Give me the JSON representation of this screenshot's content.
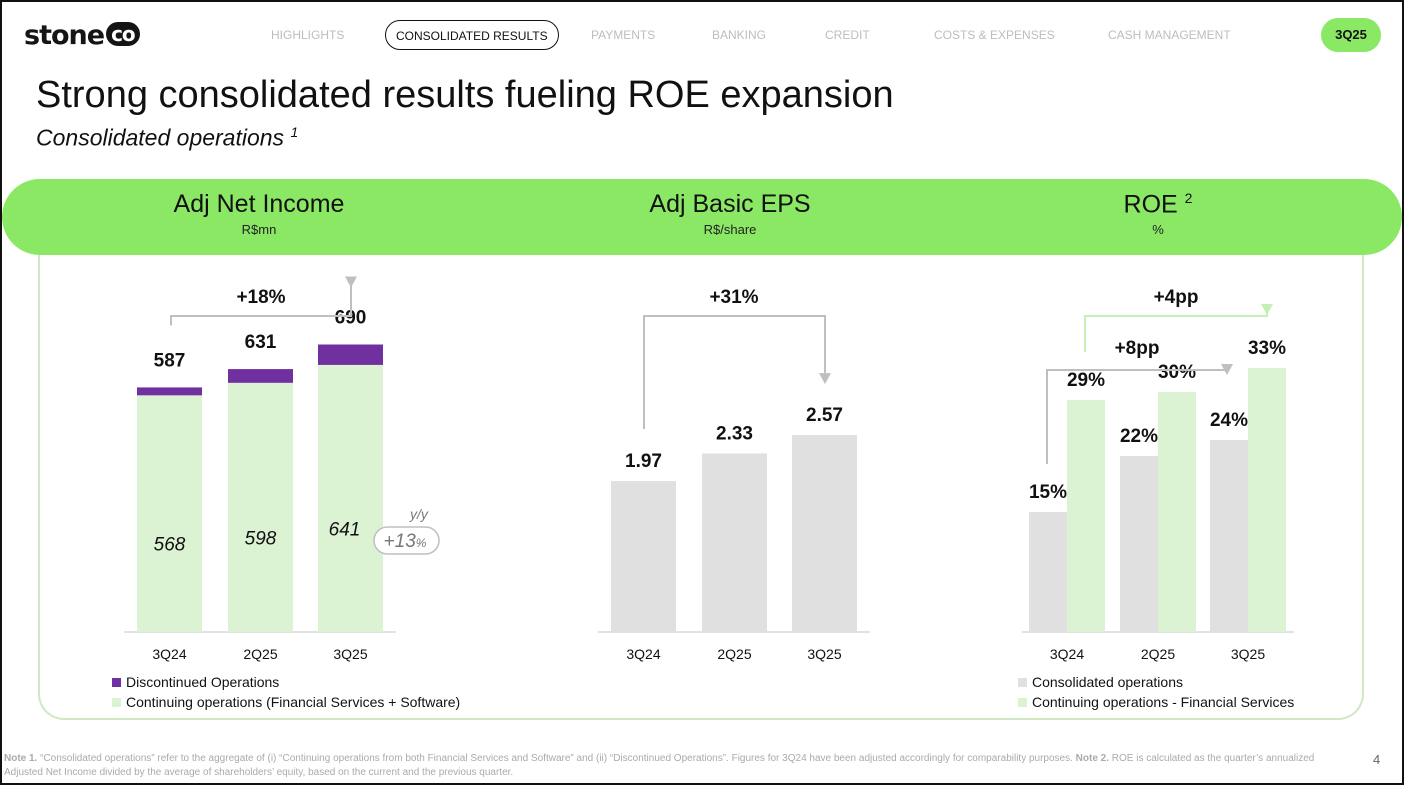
{
  "brand": {
    "logo_text": "stone",
    "logo_badge": "co"
  },
  "nav": {
    "items": [
      {
        "label": "HIGHLIGHTS",
        "active": false
      },
      {
        "label": "CONSOLIDATED RESULTS",
        "active": true
      },
      {
        "label": "PAYMENTS",
        "active": false
      },
      {
        "label": "BANKING",
        "active": false
      },
      {
        "label": "CREDIT",
        "active": false
      },
      {
        "label": "COSTS & EXPENSES",
        "active": false
      },
      {
        "label": "CASH MANAGEMENT",
        "active": false
      }
    ],
    "period": "3Q25"
  },
  "title": "Strong consolidated results fueling ROE expansion",
  "subtitle": "Consolidated operations",
  "subtitle_note": "1",
  "colors": {
    "banner": "#8be865",
    "discontinued": "#7030a0",
    "continuing": "#dcf3d3",
    "consolidated": "#e0e0e0",
    "connector_gray": "#bfbfbf",
    "connector_green": "#c6efb8"
  },
  "headers": [
    {
      "title": "Adj Net Income",
      "note": "",
      "unit": "R$mn"
    },
    {
      "title": "Adj Basic EPS",
      "note": "",
      "unit": "R$/share"
    },
    {
      "title": "ROE",
      "note": "2",
      "unit": "%"
    }
  ],
  "chart_data": [
    {
      "type": "bar",
      "stacked": true,
      "title": "Adj Net Income",
      "ylabel": "R$mn",
      "categories": [
        "3Q24",
        "2Q25",
        "3Q25"
      ],
      "series": [
        {
          "name": "Continuing operations (Financial Services + Software)",
          "values": [
            568,
            598,
            641
          ],
          "color": "#dcf3d3"
        },
        {
          "name": "Discontinued Operations",
          "values": [
            19,
            33,
            49
          ],
          "color": "#7030a0"
        }
      ],
      "totals": [
        "587",
        "631",
        "690"
      ],
      "segment_labels": [
        "568",
        "598",
        "641"
      ],
      "growth": {
        "label": "+18%",
        "from": "3Q24",
        "to": "3Q25"
      },
      "yoy": {
        "caption": "y/y",
        "value": "+13",
        "unit": "%"
      },
      "ylim": [
        0,
        780
      ],
      "legend": [
        "Discontinued Operations",
        "Continuing operations (Financial Services + Software)"
      ]
    },
    {
      "type": "bar",
      "title": "Adj Basic EPS",
      "ylabel": "R$/share",
      "categories": [
        "3Q24",
        "2Q25",
        "3Q25"
      ],
      "series": [
        {
          "values": [
            1.97,
            2.33,
            2.57
          ],
          "color": "#e0e0e0"
        }
      ],
      "labels": [
        "1.97",
        "2.33",
        "2.57"
      ],
      "growth": {
        "label": "+31%",
        "from": "3Q24",
        "to": "3Q25"
      },
      "ylim": [
        0,
        3.85
      ]
    },
    {
      "type": "bar",
      "title": "ROE",
      "ylabel": "%",
      "categories": [
        "3Q24",
        "2Q25",
        "3Q25"
      ],
      "series": [
        {
          "name": "Consolidated operations",
          "values": [
            15,
            22,
            24
          ],
          "labels": [
            "15%",
            "22%",
            "24%"
          ],
          "color": "#e0e0e0"
        },
        {
          "name": "Continuing operations - Financial Services",
          "values": [
            29,
            30,
            33
          ],
          "labels": [
            "29%",
            "30%",
            "33%"
          ],
          "color": "#dcf3d3"
        }
      ],
      "growth": [
        {
          "label": "+8pp",
          "series": "Consolidated operations"
        },
        {
          "label": "+4pp",
          "series": "Continuing operations - Financial Services"
        }
      ],
      "ylim": [
        0,
        47.5
      ],
      "legend": [
        "Consolidated operations",
        "Continuing operations - Financial Services"
      ]
    }
  ],
  "footnote": {
    "note1_label": "Note 1.",
    "note1_text": "“Consolidated operations” refer to the aggregate of (i) “Continuing operations from both Financial Services and Software” and (ii) “Discontinued Operations”. Figures for 3Q24 have been adjusted accordingly for comparability purposes.",
    "note2_label": "Note 2.",
    "note2_text": "ROE is calculated as the quarter’s annualized Adjusted Net Income divided by the average of shareholders’ equity, based on the current and the previous quarter."
  },
  "page_number": "4"
}
